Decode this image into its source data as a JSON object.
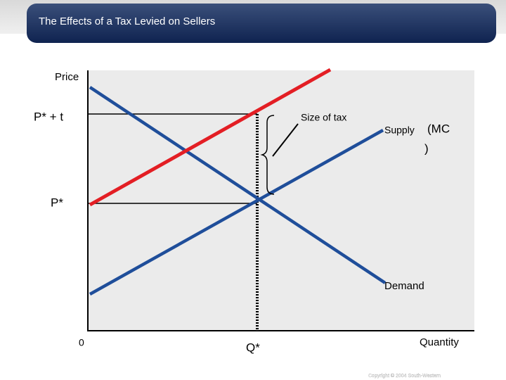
{
  "header": {
    "title": "The Effects of a Tax Levied on Sellers"
  },
  "axes": {
    "y_label": "Price",
    "x_label": "Quantity",
    "origin": "0"
  },
  "labels": {
    "price_with_tax": "P* + t",
    "price": "P*",
    "quantity": "Q*",
    "size_of_tax": "Size of tax",
    "supply": "Supply",
    "supply_mc_open": "(MC",
    "supply_mc_close": ")",
    "demand": "Demand"
  },
  "footer": {
    "copyright": "Copyright © 2004 South-Western"
  }
}
